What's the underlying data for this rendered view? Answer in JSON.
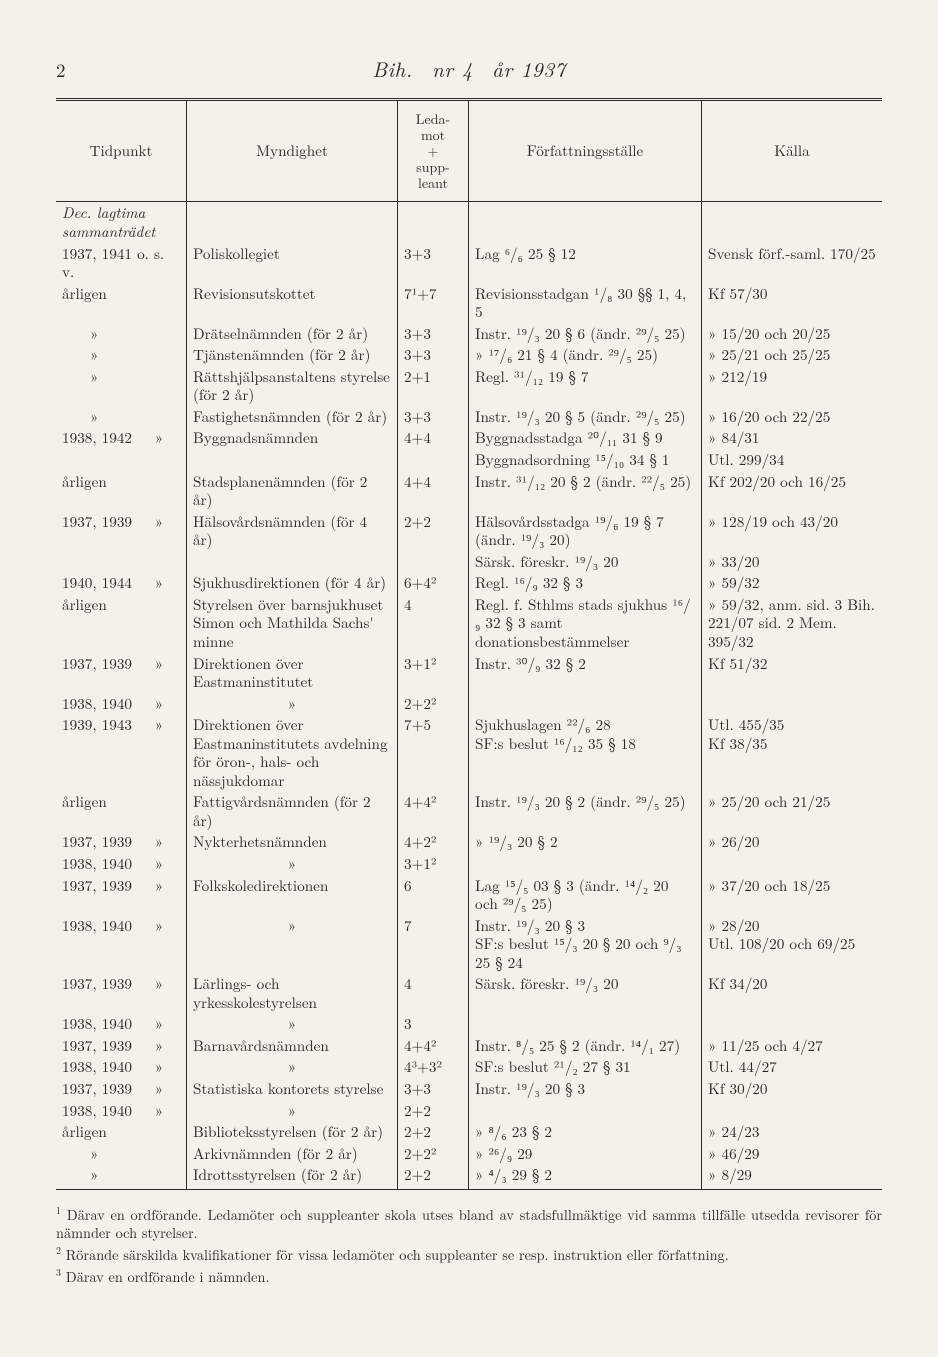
{
  "header": {
    "page_number": "2",
    "running_title_prefix": "Bih.",
    "running_title_nr": "nr 4",
    "running_title_year": "år 1937"
  },
  "columns": {
    "c1": "Tidpunkt",
    "c2": "Myndighet",
    "c3": "Leda-\nmot\n+\nsupp-\nleant",
    "c4": "Författningsställe",
    "c5": "Källa"
  },
  "block_heading": "Dec. lagtima\nsammanträdet",
  "rows": [
    {
      "c1": "1937, 1941 o. s. v.",
      "c2": "Poliskollegiet",
      "c3": "3+3",
      "c4": "Lag ⁶/₆ 25  §  12",
      "c5": "Svensk förf.-saml. 170/25"
    },
    {
      "c1": "årligen",
      "c2": "Revisionsutskottet",
      "c3": "7¹+7",
      "c4": "Revisionsstadgan ¹/₈ 30 §§ 1, 4, 5",
      "c5": "Kf 57/30"
    },
    {
      "c1": "»",
      "c2": "Drätselnämnden (för 2 år)",
      "c3": "3+3",
      "c4": "Instr. ¹⁹/₃ 20  §  6 (ändr. ²⁹/₅ 25)",
      "c5": "»   15/20 och 20/25"
    },
    {
      "c1": "»",
      "c2": "Tjänstenämnden (för 2 år)",
      "c3": "3+3",
      "c4": "»   ¹⁷/₆ 21  §  4 (ändr. ²⁹/₅ 25)",
      "c5": "»   25/21 och 25/25"
    },
    {
      "c1": "»",
      "c2": "Rättshjälpsanstaltens styrelse (för 2 år)",
      "c3": "2+1",
      "c4": "Regl. ³¹/₁₂ 19  §  7",
      "c5": "»   212/19"
    },
    {
      "c1": "»",
      "c2": "Fastighetsnämnden (för 2 år)",
      "c3": "3+3",
      "c4": "Instr. ¹⁹/₃ 20  §  5 (ändr. ²⁹/₅ 25)",
      "c5": "»   16/20 och 22/25"
    },
    {
      "c1": "1938, 1942   »",
      "c2": "Byggnadsnämnden",
      "c3": "4+4",
      "c4": "Byggnadsstadga ²⁰/₁₁ 31 § 9",
      "c5": "»   84/31"
    },
    {
      "c1": "",
      "c2": "",
      "c3": "",
      "c4": "Byggnadsordning ¹⁵/₁₀ 34 § 1",
      "c5": "Utl. 299/34"
    },
    {
      "c1": "årligen",
      "c2": "Stadsplanenämnden (för 2 år)",
      "c3": "4+4",
      "c4": "Instr. ³¹/₁₂ 20  §  2 (ändr. ²²/₅ 25)",
      "c5": "Kf 202/20 och 16/25"
    },
    {
      "c1": "1937, 1939   »",
      "c2": "Hälsovårdsnämnden (för 4 år)",
      "c3": "2+2",
      "c4": "Hälsovårdsstadga ¹⁹/₆ 19 § 7 (ändr. ¹⁹/₃ 20)",
      "c5": "»   128/19 och 43/20"
    },
    {
      "c1": "",
      "c2": "",
      "c3": "",
      "c4": "Särsk. föreskr. ¹⁹/₃ 20",
      "c5": "»   33/20"
    },
    {
      "c1": "1940, 1944   »",
      "c2": "Sjukhusdirektionen (för 4 år)",
      "c3": "6+4²",
      "c4": "Regl. ¹⁶/₉ 32  §  3",
      "c5": "»   59/32"
    },
    {
      "c1": "årligen",
      "c2": "Styrelsen över barnsjuk­huset Simon och Ma­thilda Sachs' minne",
      "c3": "4",
      "c4": "Regl. f. Sthlms stads sjukhus ¹⁶/₉ 32 § 3 samt donationsbestämmel­ser",
      "c5": "»  59/32, anm. sid. 3 Bih. 221/07 sid. 2 Mem. 395/32"
    },
    {
      "c1": "1937, 1939   »",
      "c2": "Direktionen över East­maninstitutet",
      "c3": "3+1²",
      "c4": "Instr. ³⁰/₉ 32  §  2",
      "c5": "Kf 51/32"
    },
    {
      "c1": "1938, 1940   »",
      "c2": "»",
      "c3": "2+2²",
      "c4": "",
      "c5": ""
    },
    {
      "c1": "1939, 1943   »",
      "c2": "Direktionen över East­maninstitutets avdel­ning för öron-, hals- och nässjukdomar",
      "c3": "7+5",
      "c4": "Sjukhuslagen ²²/₆ 28\nSF:s beslut ¹⁶/₁₂ 35 § 18",
      "c5": "Utl. 455/35\nKf 38/35"
    },
    {
      "c1": "årligen",
      "c2": "Fattigvårdsnämnden (för 2 år)",
      "c3": "4+4²",
      "c4": "Instr. ¹⁹/₃ 20  §  2 (ändr. ²⁹/₅ 25)",
      "c5": "»   25/20 och 21/25"
    },
    {
      "c1": "1937, 1939   »",
      "c2": "Nykterhetsnämnden",
      "c3": "4+2²",
      "c4": "»   ¹⁹/₃ 20  §  2",
      "c5": "»   26/20"
    },
    {
      "c1": "1938, 1940   »",
      "c2": "»",
      "c3": "3+1²",
      "c4": "",
      "c5": ""
    },
    {
      "c1": "1937, 1939   »",
      "c2": "Folkskoledirektionen",
      "c3": "6",
      "c4": "Lag ¹⁵/₅ 03 § 3 (ändr. ¹⁴/₂ 20 och ²⁹/₅ 25)",
      "c5": "»   37/20 och 18/25"
    },
    {
      "c1": "1938, 1940   »",
      "c2": "»",
      "c3": "7",
      "c4": "Instr. ¹⁹/₃ 20 § 3\nSF:s beslut ¹⁵/₃ 20 § 20 och ⁹/₃ 25 § 24",
      "c5": "»   28/20\nUtl. 108/20 och 69/25"
    },
    {
      "c1": "1937, 1939   »",
      "c2": "Lärlings- och yrkes­skolestyrelsen",
      "c3": "4",
      "c4": "Särsk. föreskr. ¹⁹/₃ 20",
      "c5": "Kf 34/20"
    },
    {
      "c1": "1938, 1940   »",
      "c2": "»",
      "c3": "3",
      "c4": "",
      "c5": ""
    },
    {
      "c1": "1937, 1939   »",
      "c2": "Barnavårdsnämnden",
      "c3": "4+4²",
      "c4": "Instr. ⁸/₅ 25  §  2 (ändr. ¹⁴/₁ 27)",
      "c5": "»   11/25 och 4/27"
    },
    {
      "c1": "1938, 1940   »",
      "c2": "»",
      "c3": "4³+3²",
      "c4": "SF:s beslut ²¹/₂ 27 § 31",
      "c5": "Utl. 44/27"
    },
    {
      "c1": "1937, 1939   »",
      "c2": "Statistiska kontorets styrelse",
      "c3": "3+3",
      "c4": "Instr. ¹⁹/₃ 20  §  3",
      "c5": "Kf 30/20"
    },
    {
      "c1": "1938, 1940   »",
      "c2": "»",
      "c3": "2+2",
      "c4": "",
      "c5": ""
    },
    {
      "c1": "årligen",
      "c2": "Biblioteksstyrelsen (för 2 år)",
      "c3": "2+2",
      "c4": "»   ⁸/₆ 23  §  2",
      "c5": "»   24/23"
    },
    {
      "c1": "»",
      "c2": "Arkivnämnden (för 2 år)",
      "c3": "2+2²",
      "c4": "»   ²⁶/₉ 29",
      "c5": "»   46/29"
    },
    {
      "c1": "»",
      "c2": "Idrottsstyrelsen (för 2 år)",
      "c3": "2+2",
      "c4": "»   ⁴/₃ 29  §  2",
      "c5": "»   8/29"
    }
  ],
  "footnotes": {
    "f1": "Därav en ordförande.  Ledamöter och suppleanter skola utses bland av stadsfullmäktige vid samma tillfälle utsedda revisorer för nämnder och styrelser.",
    "f2": "Rörande särskilda kvalifikationer för vissa ledamöter och suppleanter se resp. instruktion eller författning.",
    "f3": "Därav en ordförande i nämnden."
  }
}
